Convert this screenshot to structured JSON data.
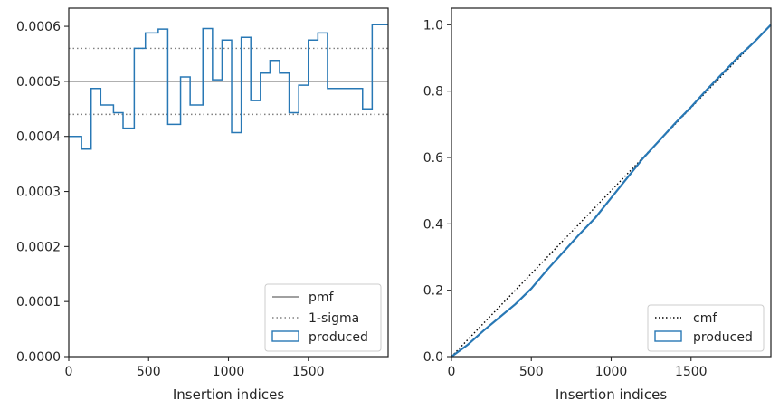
{
  "chart_data": [
    {
      "type": "line",
      "xlabel": "Insertion indices",
      "ylabel": "",
      "xlim": [
        0,
        2000
      ],
      "ylim": [
        0,
        0.000633
      ],
      "xticks": [
        0,
        500,
        1000,
        1500
      ],
      "yticks": [
        0.0,
        0.0001,
        0.0002,
        0.0003,
        0.0004,
        0.0005,
        0.0006
      ],
      "xtick_labels": [
        "0",
        "500",
        "1000",
        "1500"
      ],
      "ytick_labels": [
        "0.0000",
        "0.0001",
        "0.0002",
        "0.0003",
        "0.0004",
        "0.0005",
        "0.0006"
      ],
      "grid": false,
      "legend_position": "lower-right",
      "series": [
        {
          "name": "pmf",
          "style": "solid",
          "color": "#808080",
          "y": 0.0005
        },
        {
          "name": "1-sigma",
          "style": "dotted",
          "color": "#808080",
          "y": [
            0.00044,
            0.00056
          ]
        },
        {
          "name": "produced",
          "style": "step-histogram",
          "color": "#2878b5",
          "bin_edges": [
            0,
            80,
            140,
            200,
            280,
            340,
            410,
            480,
            560,
            620,
            700,
            760,
            840,
            900,
            960,
            1020,
            1080,
            1140,
            1200,
            1260,
            1320,
            1380,
            1440,
            1500,
            1560,
            1620,
            1700,
            1760,
            1840,
            1900,
            1960,
            2000
          ],
          "values": [
            0.0004,
            0.000377,
            0.000487,
            0.000457,
            0.000443,
            0.000415,
            0.00056,
            0.000588,
            0.000595,
            0.000422,
            0.000508,
            0.000457,
            0.000596,
            0.000503,
            0.000575,
            0.000407,
            0.00058,
            0.000465,
            0.000515,
            0.000538,
            0.000515,
            0.000443,
            0.000493,
            0.000575,
            0.000588,
            0.000487,
            0.000487,
            0.000487,
            0.00045,
            0.000603,
            0.000603
          ]
        }
      ]
    },
    {
      "type": "line",
      "xlabel": "Insertion indices",
      "ylabel": "",
      "xlim": [
        0,
        2000
      ],
      "ylim": [
        0,
        1.05
      ],
      "xticks": [
        0,
        500,
        1000,
        1500
      ],
      "yticks": [
        0.0,
        0.2,
        0.4,
        0.6,
        0.8,
        1.0
      ],
      "xtick_labels": [
        "0",
        "500",
        "1000",
        "1500"
      ],
      "ytick_labels": [
        "0.0",
        "0.2",
        "0.4",
        "0.6",
        "0.8",
        "1.0"
      ],
      "grid": false,
      "legend_position": "lower-right",
      "series": [
        {
          "name": "cmf",
          "style": "dotted",
          "color": "#000000",
          "x": [
            0,
            2000
          ],
          "y": [
            0,
            1.0
          ]
        },
        {
          "name": "produced",
          "style": "solid",
          "color": "#2878b5",
          "x": [
            0,
            100,
            200,
            300,
            400,
            500,
            600,
            700,
            800,
            900,
            1000,
            1100,
            1200,
            1300,
            1400,
            1500,
            1600,
            1700,
            1800,
            1900,
            2000
          ],
          "y": [
            0.0,
            0.035,
            0.078,
            0.118,
            0.158,
            0.205,
            0.262,
            0.315,
            0.368,
            0.418,
            0.478,
            0.538,
            0.598,
            0.65,
            0.703,
            0.752,
            0.805,
            0.855,
            0.905,
            0.95,
            1.0
          ]
        }
      ]
    }
  ]
}
